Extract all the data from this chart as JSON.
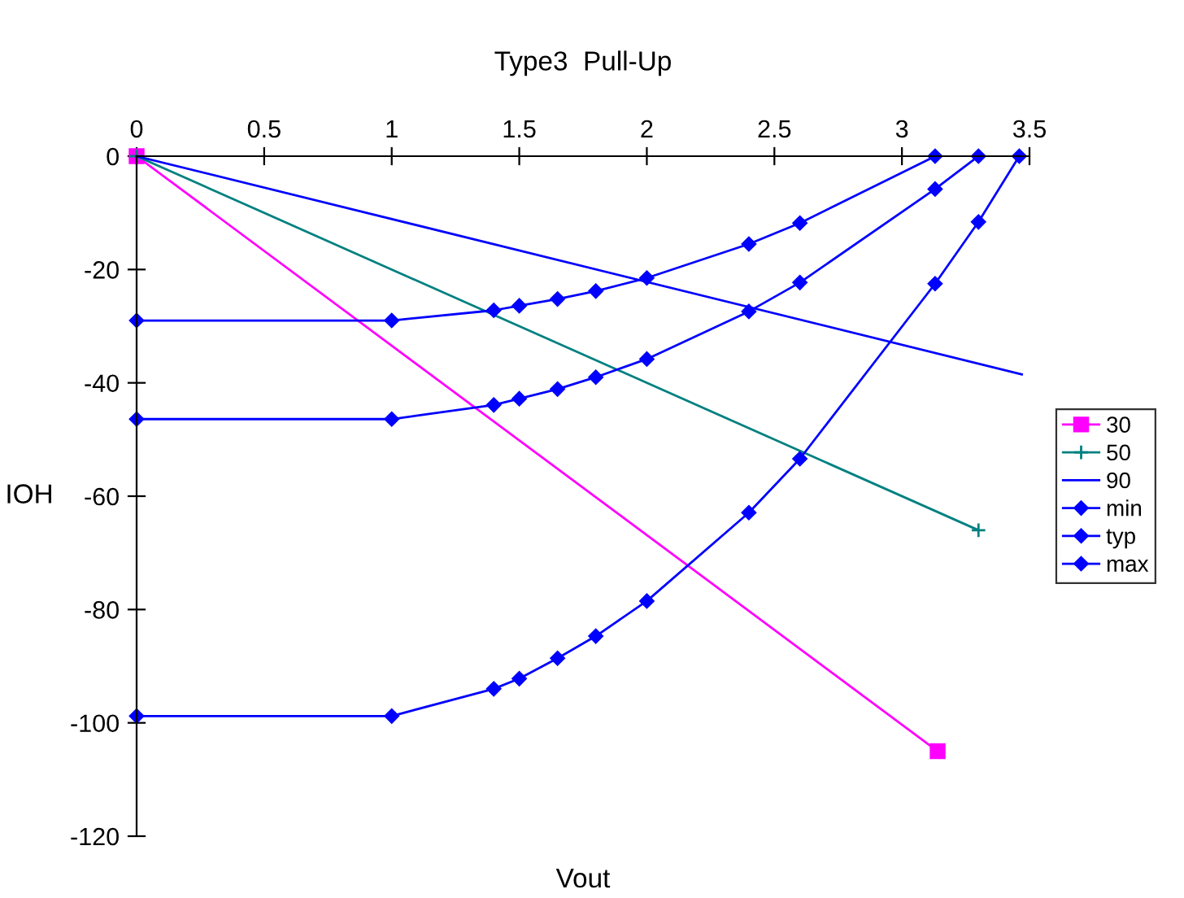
{
  "chart_data": {
    "type": "line",
    "title": "Type3  Pull-Up",
    "xlabel": "Vout",
    "ylabel": "IOH",
    "xlim": [
      0,
      3.5
    ],
    "xticks": [
      0,
      0.5,
      1,
      1.5,
      2,
      2.5,
      3,
      3.5
    ],
    "ylim": [
      -120,
      0
    ],
    "yticks": [
      -120,
      -100,
      -80,
      -60,
      -40,
      -20,
      0
    ],
    "grid": false,
    "legend": "right",
    "line_style": "solid",
    "series": [
      {
        "name": "30",
        "color": "#ff00ff",
        "marker": "square",
        "x": [
          0,
          3.14
        ],
        "values": [
          0,
          -105
        ]
      },
      {
        "name": "50",
        "color": "#008080",
        "marker": "cross",
        "x": [
          0,
          3.3
        ],
        "values": [
          0,
          -66
        ]
      },
      {
        "name": "90",
        "color": "#0000ff",
        "marker": "none",
        "x": [
          0,
          3.47
        ],
        "values": [
          0,
          -38.5
        ]
      },
      {
        "name": "min",
        "color": "#0000ff",
        "marker": "diamond",
        "x": [
          0,
          1,
          1.4,
          1.5,
          1.65,
          1.8,
          2,
          2.4,
          2.6,
          3.13
        ],
        "values": [
          -29,
          -29,
          -27.2,
          -26.4,
          -25.2,
          -23.8,
          -21.5,
          -15.5,
          -11.8,
          0
        ]
      },
      {
        "name": "typ",
        "color": "#0000ff",
        "marker": "diamond",
        "x": [
          0,
          1,
          1.4,
          1.5,
          1.65,
          1.8,
          2,
          2.4,
          2.6,
          3.13,
          3.3
        ],
        "values": [
          -46.4,
          -46.4,
          -43.9,
          -42.8,
          -41.1,
          -39,
          -35.8,
          -27.4,
          -22.3,
          -5.8,
          0
        ]
      },
      {
        "name": "max",
        "color": "#0000ff",
        "marker": "diamond",
        "x": [
          0,
          1,
          1.4,
          1.5,
          1.65,
          1.8,
          2,
          2.4,
          2.6,
          3.13,
          3.3,
          3.46
        ],
        "values": [
          -98.8,
          -98.8,
          -94,
          -92.2,
          -88.6,
          -84.7,
          -78.5,
          -62.9,
          -53.4,
          -22.5,
          -11.6,
          0
        ]
      }
    ]
  }
}
